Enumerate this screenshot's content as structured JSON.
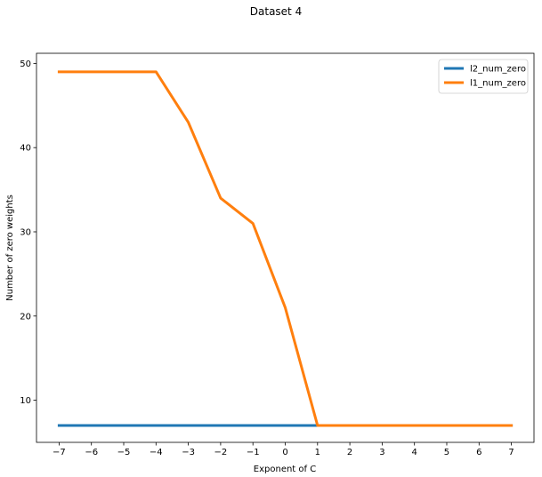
{
  "chart_data": {
    "type": "line",
    "title": "Dataset 4",
    "xlabel": "Exponent of C",
    "ylabel": "Number of zero weights",
    "x": [
      -7,
      -6,
      -5,
      -4,
      -3,
      -2,
      -1,
      0,
      1,
      2,
      3,
      4,
      5,
      6,
      7
    ],
    "xtick_labels": [
      "−7",
      "−6",
      "−5",
      "−4",
      "−3",
      "−2",
      "−1",
      "0",
      "1",
      "2",
      "3",
      "4",
      "5",
      "6",
      "7"
    ],
    "yticks": [
      10,
      20,
      30,
      40,
      50
    ],
    "ytick_labels": [
      "10",
      "20",
      "30",
      "40",
      "50"
    ],
    "xlim": [
      -7.7,
      7.7
    ],
    "ylim": [
      5,
      51.2
    ],
    "grid": false,
    "legend_position": "upper right",
    "series": [
      {
        "name": "l2_num_zero",
        "color": "#1f77b4",
        "values": [
          7,
          7,
          7,
          7,
          7,
          7,
          7,
          7,
          7,
          7,
          7,
          7,
          7,
          7,
          7
        ]
      },
      {
        "name": "l1_num_zero",
        "color": "#ff7f0e",
        "values": [
          49,
          49,
          49,
          49,
          43,
          34,
          31,
          21,
          7,
          7,
          7,
          7,
          7,
          7,
          7
        ]
      }
    ]
  }
}
